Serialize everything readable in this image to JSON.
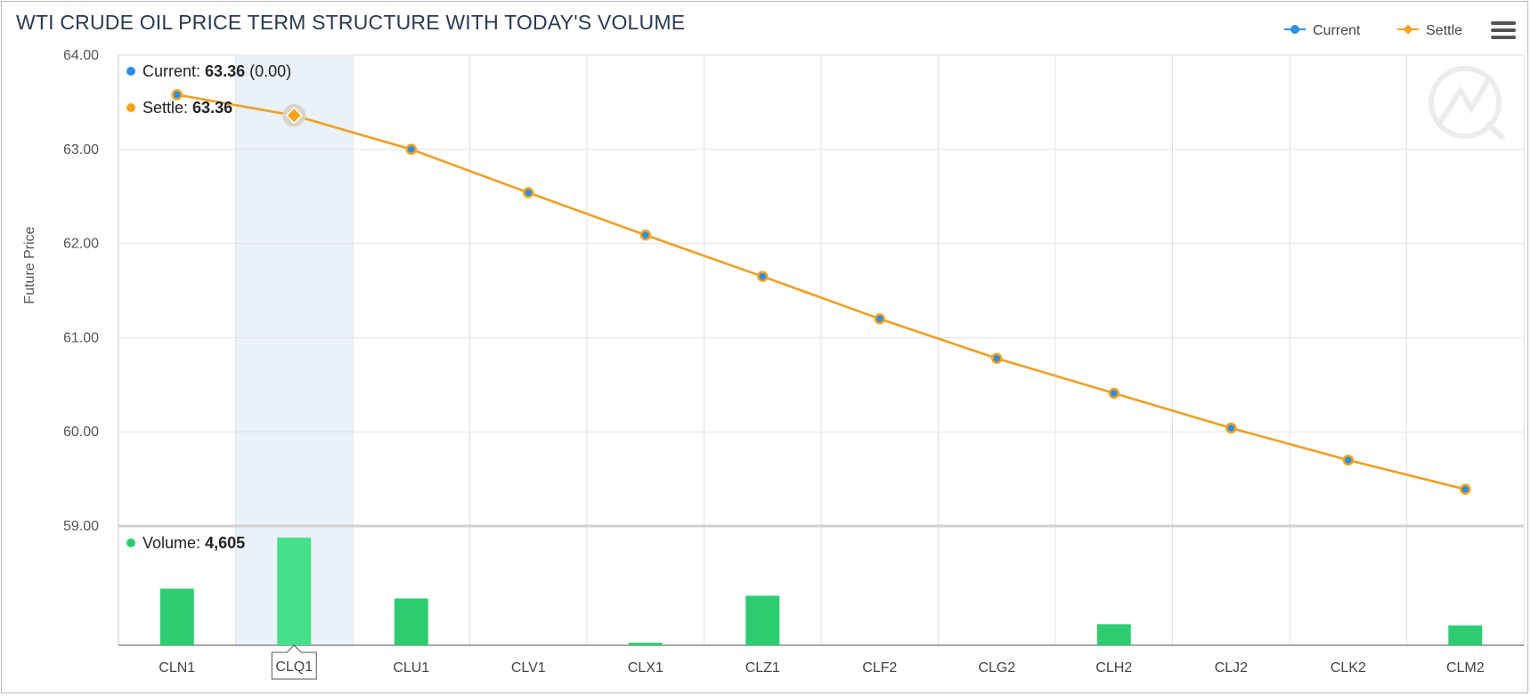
{
  "title": "WTI CRUDE OIL PRICE TERM STRUCTURE WITH TODAY'S VOLUME",
  "legend": {
    "current_label": "Current",
    "settle_label": "Settle"
  },
  "icons": {
    "menu": "hamburger-menu-icon",
    "watermark": "quote-logo-watermark"
  },
  "colors": {
    "current": "#2b8ee8",
    "settle": "#f7a21b",
    "volume": "#2ecc71",
    "volume_hover": "#46e08a",
    "title": "#2a3a52",
    "grid": "#e2e2e2",
    "highlight": "#e9f0f8"
  },
  "tooltip": {
    "current_label": "Current",
    "current_value": "63.36",
    "current_change": "(0.00)",
    "settle_label": "Settle",
    "settle_value": "63.36",
    "volume_label": "Volume",
    "volume_value": "4,605",
    "category": "CLQ1"
  },
  "chart_data": {
    "type": "line",
    "categories": [
      "CLN1",
      "CLQ1",
      "CLU1",
      "CLV1",
      "CLX1",
      "CLZ1",
      "CLF2",
      "CLG2",
      "CLH2",
      "CLJ2",
      "CLK2",
      "CLM2"
    ],
    "ylabel": "Future Price",
    "ylim": [
      59,
      64
    ],
    "yticks": [
      "64.00",
      "63.00",
      "62.00",
      "61.00",
      "60.00",
      "59.00"
    ],
    "grid": true,
    "legend_position": "top-right",
    "highlighted_category": "CLQ1",
    "series": [
      {
        "name": "Current",
        "values": [
          63.58,
          63.36,
          63.0,
          62.54,
          62.09,
          61.65,
          61.2,
          60.78,
          60.41,
          60.04,
          59.7,
          59.39
        ]
      },
      {
        "name": "Settle",
        "values": [
          63.58,
          63.36,
          63.0,
          62.54,
          62.09,
          61.65,
          61.2,
          60.78,
          60.41,
          60.04,
          59.7,
          59.39
        ]
      }
    ],
    "volume": {
      "name": "Volume",
      "type": "bar",
      "values": [
        2420,
        4605,
        2000,
        0,
        110,
        2120,
        0,
        0,
        900,
        0,
        0,
        850
      ],
      "ylim": [
        0,
        5100
      ]
    }
  }
}
